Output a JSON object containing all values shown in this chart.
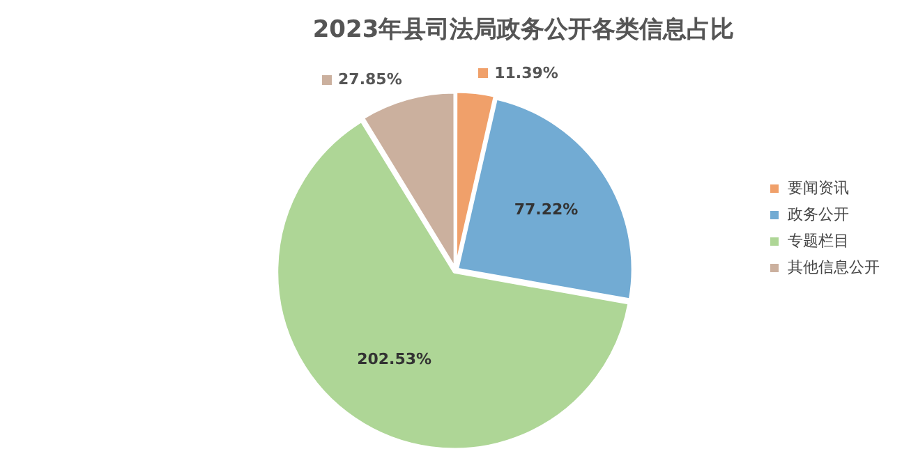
{
  "chart_data": {
    "type": "pie",
    "title": "2023年县司法局政务公开各类信息占比",
    "categories": [
      "要闻资讯",
      "政务公开",
      "专题栏目",
      "其他信息公开"
    ],
    "values": [
      11.39,
      77.22,
      202.53,
      27.85
    ],
    "value_labels": [
      "11.39%",
      "77.22%",
      "202.53%",
      "27.85%"
    ],
    "colors": [
      "#f0a06a",
      "#72abd3",
      "#aed696",
      "#cbb09e"
    ],
    "legend": "right"
  }
}
